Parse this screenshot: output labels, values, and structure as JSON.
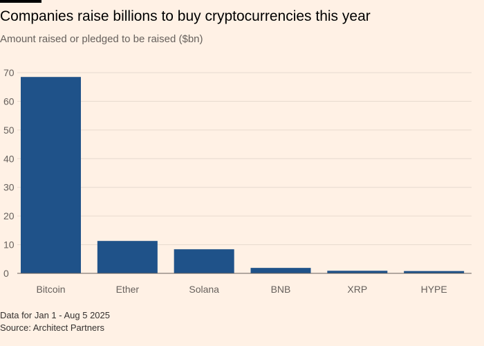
{
  "header": {
    "title": "Companies raise billions to buy cryptocurrencies this year",
    "subtitle": "Amount raised or pledged to be raised ($bn)"
  },
  "footer": {
    "note": "Data for Jan 1 - Aug 5 2025",
    "source": "Source: Architect Partners"
  },
  "colors": {
    "background": "#FFF1E5",
    "bar": "#1F5289",
    "grid": "#E6D9CE",
    "axis": "#66605C",
    "text": "#33302E"
  },
  "chart_data": {
    "type": "bar",
    "title": "Companies raise billions to buy cryptocurrencies this year",
    "subtitle": "Amount raised or pledged to be raised ($bn)",
    "categories": [
      "Bitcoin",
      "Ether",
      "Solana",
      "BNB",
      "XRP",
      "HYPE"
    ],
    "values": [
      68.5,
      11.3,
      8.4,
      1.9,
      0.9,
      0.8
    ],
    "xlabel": "",
    "ylabel": "",
    "ylim": [
      0,
      70
    ],
    "yticks": [
      "0",
      "10",
      "20",
      "30",
      "40",
      "50",
      "60",
      "70"
    ],
    "grid": true,
    "legend": "none"
  }
}
